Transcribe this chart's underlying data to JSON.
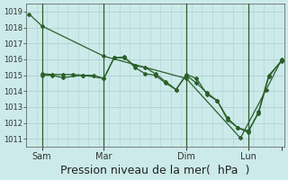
{
  "background_color": "#cceaea",
  "grid_color": "#b0d0d0",
  "line_color": "#2a5f2a",
  "marker_color": "#2a5f2a",
  "xlabel": "Pression niveau de la mer(  hPa  )",
  "xlabel_fontsize": 9,
  "yticks": [
    1011,
    1012,
    1013,
    1014,
    1015,
    1016,
    1017,
    1018,
    1019
  ],
  "ylim": [
    1010.5,
    1019.5
  ],
  "xlim": [
    0,
    100
  ],
  "xtick_positions": [
    6,
    30,
    62,
    86,
    99
  ],
  "xtick_labels": [
    "Sam",
    "Mar",
    "Dim",
    "Lun",
    ""
  ],
  "vlines": [
    6,
    30,
    62,
    86
  ],
  "line1_x": [
    1,
    6,
    30,
    62,
    83,
    93,
    99
  ],
  "line1_y": [
    1018.85,
    1018.1,
    1016.2,
    1014.8,
    1011.05,
    1014.1,
    1016.0
  ],
  "line2_x": [
    6,
    10,
    14,
    18,
    22,
    26,
    30,
    34,
    38,
    42,
    46,
    50,
    54,
    58,
    62,
    66,
    70,
    74,
    78,
    82,
    86,
    90,
    94,
    99
  ],
  "line2_y": [
    1015.1,
    1015.05,
    1015.05,
    1015.05,
    1015.0,
    1015.0,
    1014.8,
    1016.1,
    1016.1,
    1015.6,
    1015.5,
    1015.1,
    1014.6,
    1014.1,
    1015.0,
    1014.5,
    1013.9,
    1013.4,
    1012.3,
    1011.7,
    1011.4,
    1012.7,
    1015.0,
    1015.9
  ],
  "line3_x": [
    6,
    10,
    14,
    22,
    30,
    34,
    38,
    42,
    46,
    50,
    54,
    58,
    62,
    66,
    70,
    74,
    78,
    82,
    86,
    90,
    94,
    99
  ],
  "line3_y": [
    1015.0,
    1015.0,
    1014.85,
    1015.0,
    1014.8,
    1016.1,
    1016.15,
    1015.5,
    1015.1,
    1015.0,
    1014.5,
    1014.1,
    1015.05,
    1014.8,
    1013.8,
    1013.4,
    1012.2,
    1011.7,
    1011.5,
    1012.6,
    1014.9,
    1015.95
  ],
  "ytick_fontsize": 6,
  "xtick_fontsize": 7
}
